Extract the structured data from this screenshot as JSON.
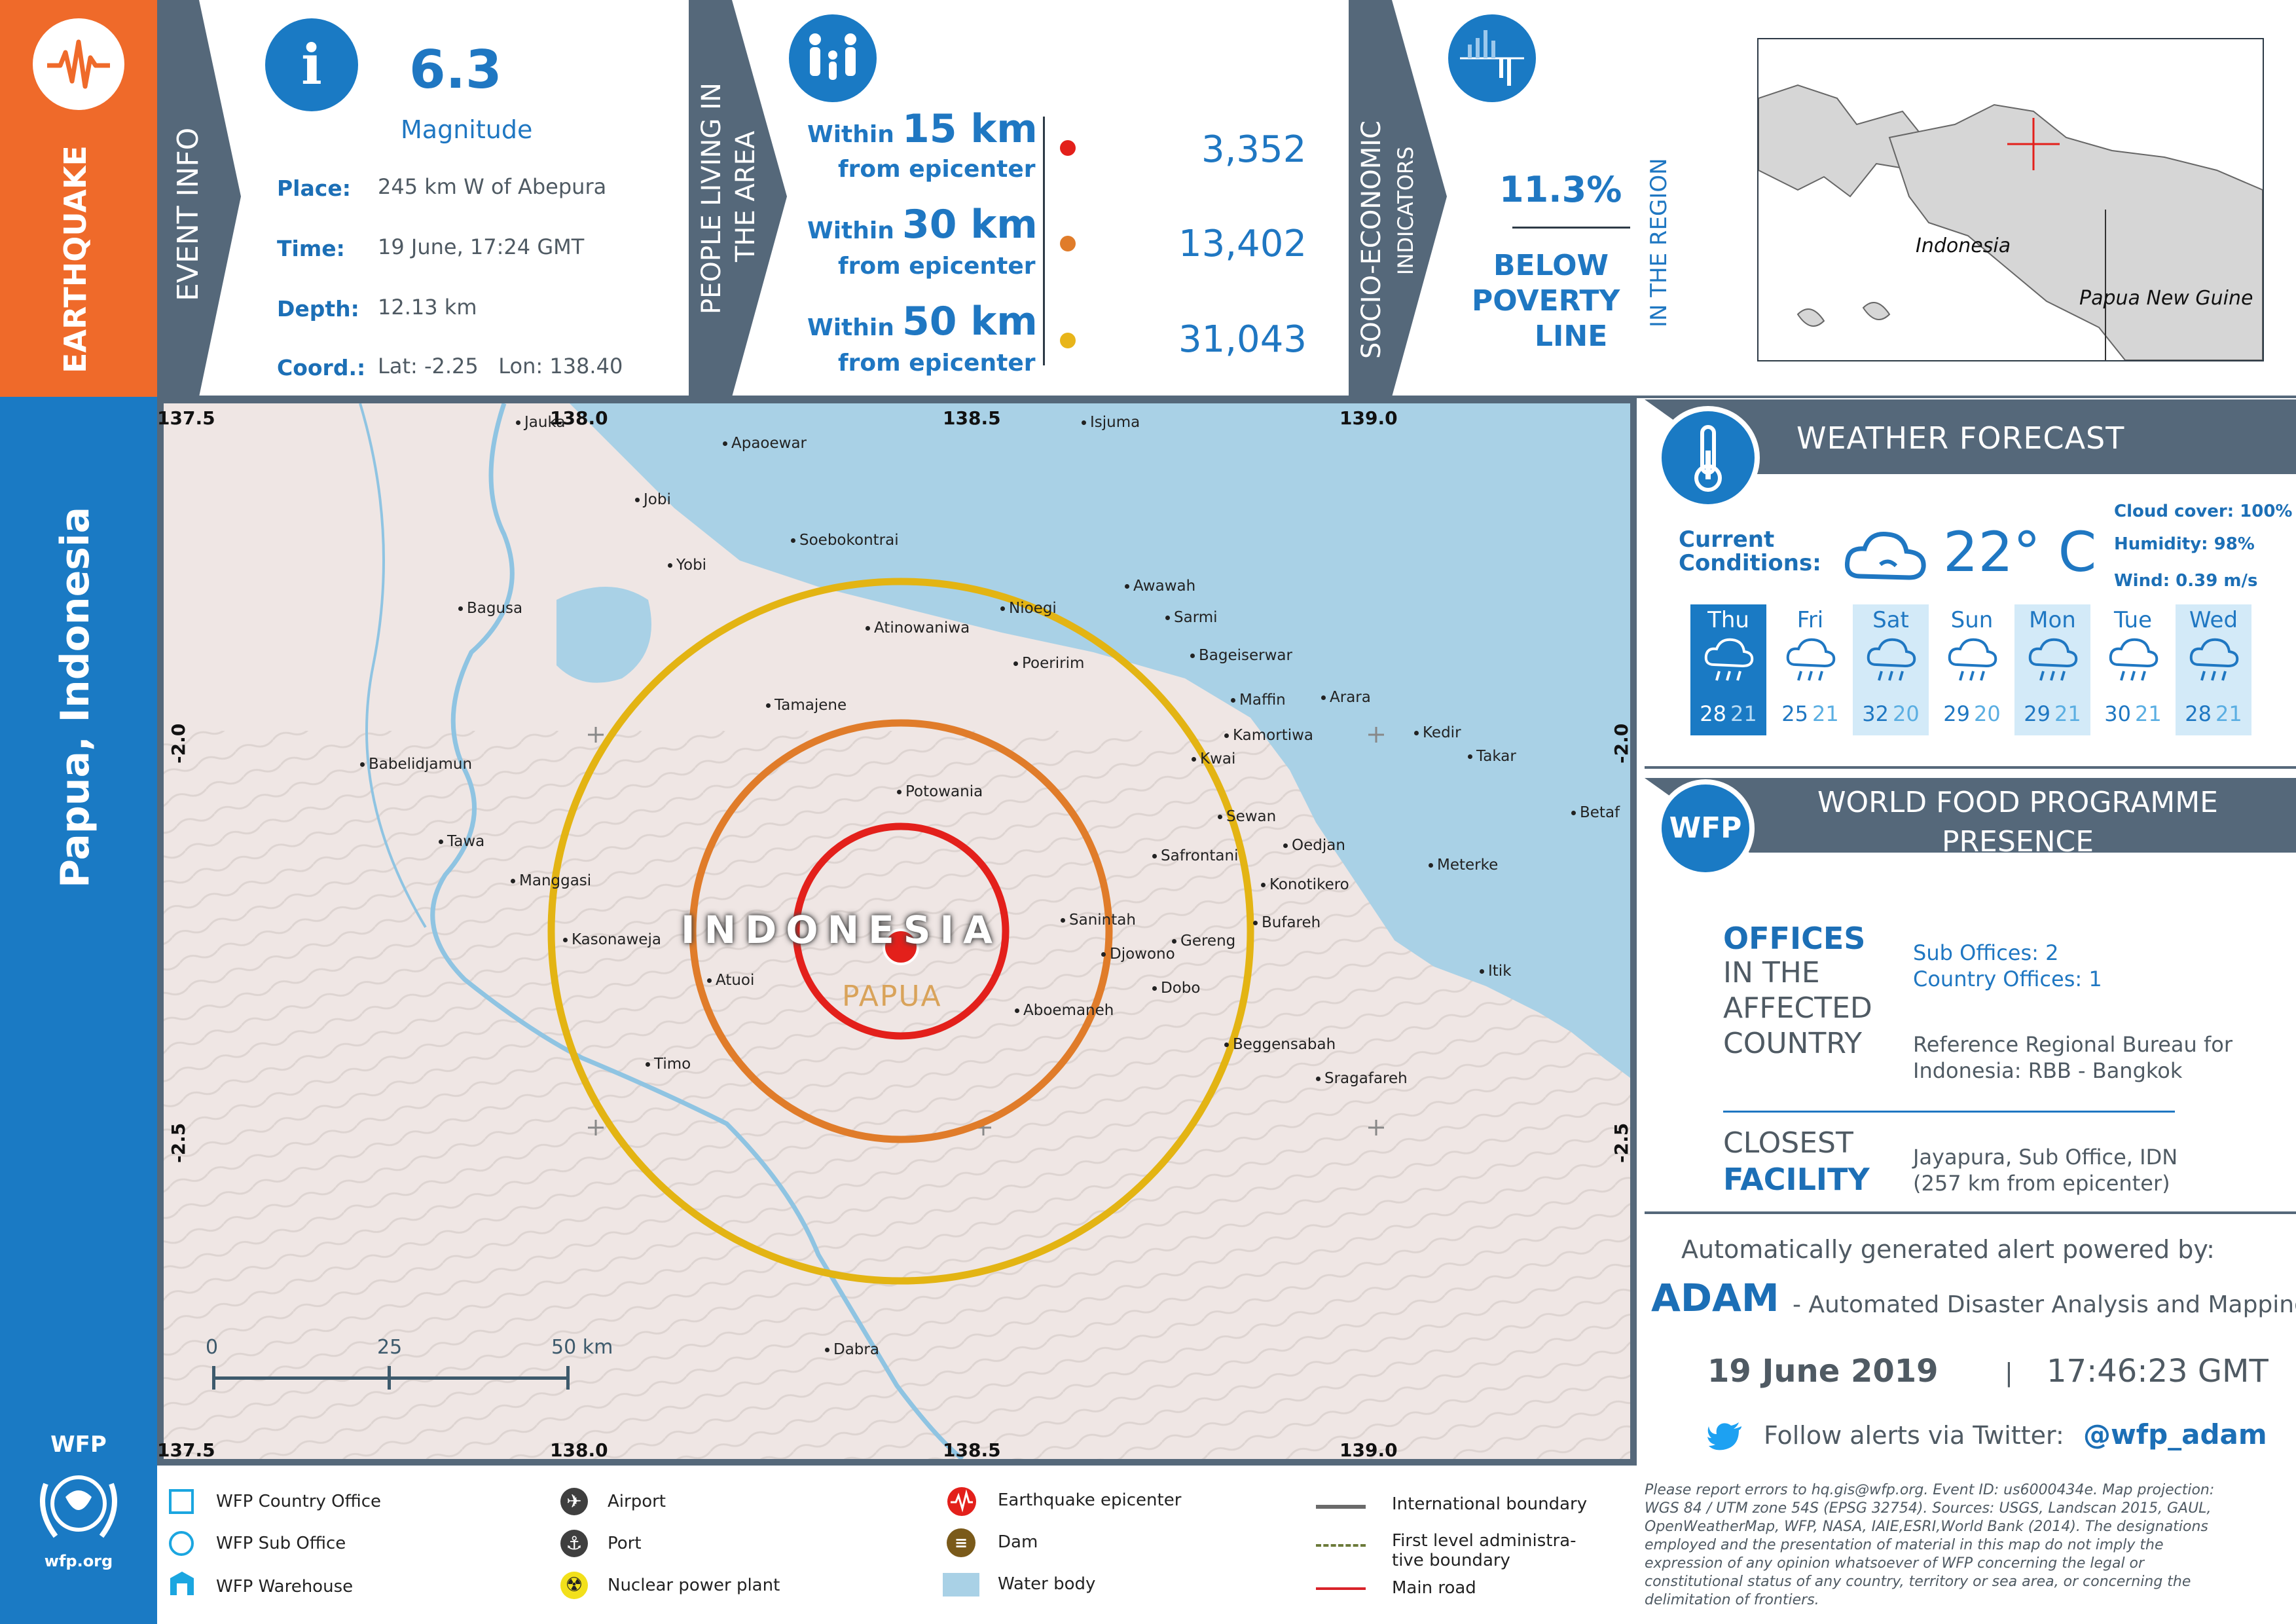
{
  "sidebar": {
    "hazard": "EARTHQUAKE",
    "region": "Papua, Indonesia",
    "logo_text": "WFP",
    "logo_url": "wfp.org"
  },
  "event_info": {
    "section_label": "EVENT INFO",
    "magnitude_value": "6.3",
    "magnitude_label": "Magnitude",
    "place_label": "Place:",
    "place_value": "245 km W of Abepura",
    "time_label": "Time:",
    "time_value": "19 June, 17:24 GMT",
    "depth_label": "Depth:",
    "depth_value": "12.13 km",
    "coord_label": "Coord.:",
    "coord_value": "Lat: -2.25   Lon: 138.40"
  },
  "people": {
    "section_label_1": "PEOPLE LIVING IN",
    "section_label_2": "THE AREA",
    "rows": [
      {
        "within": "Within",
        "km": "15 km",
        "from": "from epicenter",
        "value": "3,352",
        "color": "#e3201b"
      },
      {
        "within": "Within",
        "km": "30 km",
        "from": "from epicenter",
        "value": "13,402",
        "color": "#e07c2a"
      },
      {
        "within": "Within",
        "km": "50 km",
        "from": "from epicenter",
        "value": "31,043",
        "color": "#e8b51a"
      }
    ]
  },
  "socio": {
    "section_label_1": "SOCIO-ECONOMIC",
    "section_label_2": "INDICATORS",
    "percent": "11.3%",
    "line1": "BELOW",
    "line2": "POVERTY",
    "line3": "LINE",
    "region_note": "IN THE REGION"
  },
  "inset_map": {
    "label_indonesia": "Indonesia",
    "label_png": "Papua New Guine"
  },
  "weather": {
    "title": "WEATHER FORECAST",
    "current_label_1": "Current",
    "current_label_2": "Conditions:",
    "temperature": "22° C",
    "cloud_cover": "Cloud cover: 100%",
    "humidity": "Humidity: 98%",
    "wind": "Wind: 0.39 m/s",
    "days": [
      {
        "name": "Thu",
        "hi": "28",
        "lo": "21"
      },
      {
        "name": "Fri",
        "hi": "25",
        "lo": "21"
      },
      {
        "name": "Sat",
        "hi": "32",
        "lo": "20"
      },
      {
        "name": "Sun",
        "hi": "29",
        "lo": "20"
      },
      {
        "name": "Mon",
        "hi": "29",
        "lo": "21"
      },
      {
        "name": "Tue",
        "hi": "30",
        "lo": "21"
      },
      {
        "name": "Wed",
        "hi": "28",
        "lo": "21"
      }
    ]
  },
  "wfp": {
    "badge": "WFP",
    "title_1": "WORLD FOOD PROGRAMME",
    "title_2": "PRESENCE",
    "offices_1": "OFFICES",
    "offices_2": "IN THE",
    "offices_3": "AFFECTED",
    "offices_4": "COUNTRY",
    "sub_offices": "Sub Offices: 2",
    "country_offices": "Country Offices: 1",
    "rbb_1": "Reference Regional Bureau for",
    "rbb_2": "Indonesia: RBB - Bangkok",
    "closest_1": "CLOSEST",
    "closest_2": "FACILITY",
    "facility_1": "Jayapura, Sub Office, IDN",
    "facility_2": "(257 km from epicenter)"
  },
  "adam": {
    "powered": "Automatically generated alert powered by:",
    "name": "ADAM",
    "desc": "- Automated Disaster Analysis and Mapping",
    "date": "19 June 2019",
    "sep": "|",
    "time": "17:46:23 GMT",
    "follow": "Follow alerts via Twitter:",
    "handle": "@wfp_adam"
  },
  "map": {
    "country_label": "INDONESIA",
    "province_label": "PAPUA",
    "lon_labels": [
      "137.5",
      "138.0",
      "138.5",
      "139.0"
    ],
    "lat_labels": [
      "-2.0",
      "-2.5"
    ],
    "scale": {
      "zero": "0",
      "mid": "25",
      "end": "50 km"
    },
    "places": [
      "Jauka",
      "Apaoewar",
      "Isjuma",
      "Jobi",
      "Soebokontrai",
      "Yobi",
      "Bagusa",
      "Awawah",
      "Nioegi",
      "Atinowaniwa",
      "Sarmi",
      "Poeririm",
      "Bageiserwar",
      "Maffin",
      "Arara",
      "Tamajene",
      "Kamortiwa",
      "Kedir",
      "Takar",
      "Kwai",
      "Babelidjamun",
      "Potowania",
      "Sewan",
      "Betaf",
      "Tawa",
      "Oedjan",
      "Safrontani",
      "Meterke",
      "Manggasi",
      "Konotikero",
      "Sanintah",
      "Bufareh",
      "Kasonaweja",
      "Gereng",
      "Djowono",
      "Atuoi",
      "Dobo",
      "Itik",
      "Aboemaneh",
      "Timo",
      "Beggensabah",
      "Sragafareh",
      "Dabra"
    ]
  },
  "legend": {
    "country_office": "WFP Country Office",
    "sub_office": "WFP Sub Office",
    "warehouse": "WFP Warehouse",
    "airport": "Airport",
    "port": "Port",
    "nuclear": "Nuclear power plant",
    "epicenter": "Earthquake epicenter",
    "dam": "Dam",
    "water": "Water body",
    "intl_boundary": "International boundary",
    "admin_1": "First level administra-",
    "admin_2": "tive boundary",
    "main_road": "Main road"
  },
  "disclaimer": [
    "Please report errors to hq.gis@wfp.org. Event ID: us6000434e. Map projection:",
    "WGS 84 / UTM zone 54S (EPSG 32754). Sources: USGS, Landscan 2015, GAUL,",
    "OpenWeatherMap, WFP, NASA, IAIE,ESRI,World Bank (2014). The designations",
    "employed and the presentation of material in this map do not imply the",
    "expression of any opinion whatsoever of WFP concerning the legal or",
    "constitutional status of any country, territory or sea area, or concerning the",
    "delimitation of frontiers."
  ]
}
